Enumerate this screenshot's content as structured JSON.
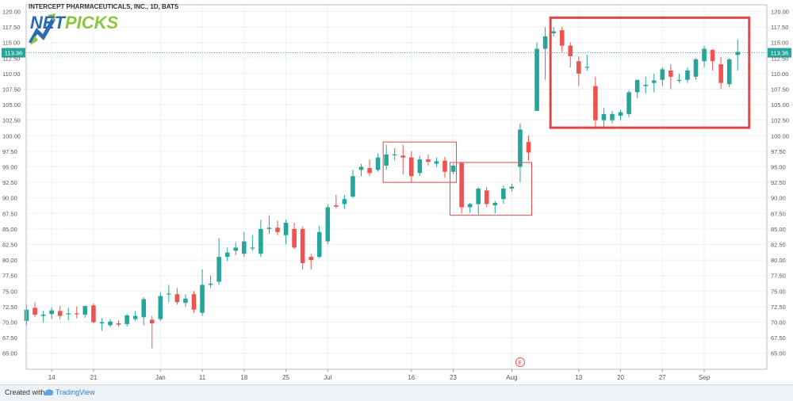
{
  "chart_data": {
    "type": "candlestick",
    "title": "INTERCEPT PHARMACEUTICALS, INC., 1D, BATS",
    "ylim": [
      63,
      121
    ],
    "y_ticks": [
      "65.00",
      "67.50",
      "70.00",
      "72.50",
      "75.00",
      "77.50",
      "80.00",
      "82.50",
      "85.00",
      "87.50",
      "90.00",
      "92.50",
      "95.00",
      "97.50",
      "100.00",
      "102.50",
      "105.00",
      "107.50",
      "110.00",
      "112.50",
      "115.00",
      "117.50",
      "120.00"
    ],
    "x_ticks": [
      {
        "label": "14",
        "bar": 3
      },
      {
        "label": "21",
        "bar": 8
      },
      {
        "label": "Jan",
        "bar": 16
      },
      {
        "label": "11",
        "bar": 21
      },
      {
        "label": "18",
        "bar": 26
      },
      {
        "label": "25",
        "bar": 31
      },
      {
        "label": "Jul",
        "bar": 36
      },
      {
        "label": "16",
        "bar": 46
      },
      {
        "label": "23",
        "bar": 51
      },
      {
        "label": "Aug",
        "bar": 58
      },
      {
        "label": "13",
        "bar": 66
      },
      {
        "label": "20",
        "bar": 71
      },
      {
        "label": "27",
        "bar": 76
      },
      {
        "label": "Sep",
        "bar": 81
      }
    ],
    "current_price": {
      "value": 113.36,
      "label": "113.36"
    },
    "earnings_marker": {
      "label": "E",
      "bar": 59
    },
    "colors": {
      "up": "#26a69a",
      "down": "#ef5350",
      "box": "#e04848",
      "price_line": "#26a69a"
    },
    "candles": [
      [
        70.2,
        72.8,
        69.5,
        72.0
      ],
      [
        72.3,
        73.2,
        70.8,
        71.2
      ],
      [
        71.0,
        71.8,
        70.0,
        71.2
      ],
      [
        71.3,
        72.4,
        70.5,
        71.9
      ],
      [
        71.8,
        72.6,
        70.4,
        71.0
      ],
      [
        71.4,
        72.3,
        70.3,
        71.4
      ],
      [
        71.4,
        72.5,
        70.6,
        71.3
      ],
      [
        71.2,
        72.4,
        70.7,
        72.6
      ],
      [
        72.7,
        73.0,
        69.8,
        70.0
      ],
      [
        69.8,
        70.6,
        68.6,
        70.0
      ],
      [
        69.5,
        70.5,
        69.2,
        70.1
      ],
      [
        69.8,
        70.3,
        69.3,
        69.6
      ],
      [
        69.7,
        71.3,
        69.3,
        71.1
      ],
      [
        70.5,
        71.8,
        70.2,
        71.0
      ],
      [
        70.8,
        74.0,
        69.5,
        73.7
      ],
      [
        70.4,
        71.0,
        65.8,
        69.8
      ],
      [
        70.5,
        74.8,
        70.2,
        74.2
      ],
      [
        74.5,
        76.0,
        73.2,
        74.6
      ],
      [
        74.5,
        75.5,
        72.8,
        73.2
      ],
      [
        73.1,
        74.5,
        72.5,
        73.8
      ],
      [
        74.5,
        75.0,
        71.5,
        72.0
      ],
      [
        71.5,
        78.5,
        71.0,
        76.0
      ],
      [
        76.0,
        77.5,
        75.5,
        76.2
      ],
      [
        76.5,
        83.5,
        76.0,
        80.5
      ],
      [
        80.5,
        82.0,
        79.8,
        81.2
      ],
      [
        81.5,
        82.8,
        80.8,
        82.0
      ],
      [
        81.0,
        84.5,
        80.5,
        83.0
      ],
      [
        82.0,
        84.0,
        81.5,
        82.0
      ],
      [
        81.0,
        86.5,
        80.5,
        85.0
      ],
      [
        85.0,
        87.2,
        84.2,
        85.2
      ],
      [
        85.2,
        86.3,
        84.0,
        84.5
      ],
      [
        84.0,
        86.5,
        82.5,
        86.0
      ],
      [
        85.0,
        86.0,
        81.8,
        82.0
      ],
      [
        85.0,
        85.4,
        78.5,
        79.5
      ],
      [
        80.5,
        81.0,
        78.5,
        80.0
      ],
      [
        80.5,
        85.5,
        80.3,
        84.5
      ],
      [
        83.0,
        89.0,
        82.5,
        88.5
      ],
      [
        88.8,
        90.5,
        88.3,
        88.6
      ],
      [
        89.0,
        90.5,
        88.2,
        89.8
      ],
      [
        90.2,
        94.5,
        90.0,
        93.5
      ],
      [
        94.5,
        95.5,
        93.5,
        95.0
      ],
      [
        94.8,
        96.2,
        93.5,
        94.0
      ],
      [
        94.5,
        97.2,
        94.2,
        96.5
      ],
      [
        95.2,
        98.5,
        94.5,
        97.0
      ],
      [
        97.0,
        98.0,
        96.0,
        97.0
      ],
      [
        96.8,
        98.5,
        93.8,
        96.5
      ],
      [
        96.5,
        97.5,
        92.5,
        93.5
      ],
      [
        94.0,
        96.8,
        93.5,
        96.2
      ],
      [
        96.2,
        97.0,
        95.2,
        95.8
      ],
      [
        95.5,
        96.5,
        95.0,
        95.9
      ],
      [
        96.0,
        96.6,
        93.2,
        94.2
      ],
      [
        94.2,
        95.5,
        93.8,
        95.2
      ],
      [
        95.6,
        95.8,
        87.5,
        88.5
      ],
      [
        88.5,
        89.2,
        87.6,
        89.0
      ],
      [
        89.0,
        91.7,
        87.3,
        91.5
      ],
      [
        91.2,
        91.8,
        88.5,
        89.0
      ],
      [
        88.8,
        89.5,
        87.5,
        89.2
      ],
      [
        89.8,
        92.0,
        89.0,
        91.5
      ],
      [
        91.5,
        92.3,
        91.0,
        91.8
      ],
      [
        95.0,
        102.0,
        92.5,
        101.0
      ],
      [
        99.0,
        100.0,
        96.0,
        97.3
      ],
      [
        104.0,
        115.0,
        104.0,
        114.0
      ],
      [
        114.0,
        117.5,
        109.0,
        116.0
      ],
      [
        116.5,
        117.5,
        116.0,
        116.8
      ],
      [
        117.0,
        117.5,
        113.5,
        114.5
      ],
      [
        114.5,
        115.0,
        111.0,
        112.8
      ],
      [
        112.0,
        112.8,
        108.0,
        110.0
      ],
      [
        111.0,
        113.0,
        110.5,
        111.1
      ],
      [
        108.0,
        109.5,
        101.5,
        102.5
      ],
      [
        102.5,
        104.5,
        101.5,
        103.5
      ],
      [
        102.5,
        104.0,
        102.0,
        103.5
      ],
      [
        103.2,
        104.2,
        102.5,
        103.8
      ],
      [
        103.5,
        107.3,
        103.0,
        107.0
      ],
      [
        107.0,
        109.0,
        106.0,
        109.0
      ],
      [
        108.0,
        109.5,
        106.8,
        108.2
      ],
      [
        108.5,
        110.0,
        107.0,
        108.9
      ],
      [
        109.0,
        111.0,
        108.0,
        110.7
      ],
      [
        110.5,
        111.5,
        107.5,
        109.5
      ],
      [
        109.0,
        110.0,
        108.5,
        109.0
      ],
      [
        109.0,
        111.0,
        108.5,
        110.5
      ],
      [
        109.5,
        112.5,
        109.0,
        112.3
      ],
      [
        112.0,
        114.5,
        111.0,
        114.0
      ],
      [
        113.8,
        114.0,
        110.5,
        112.0
      ],
      [
        111.5,
        112.7,
        107.5,
        108.5
      ],
      [
        108.3,
        112.5,
        107.8,
        112.3
      ],
      [
        113.0,
        115.5,
        110.5,
        113.5
      ]
    ],
    "annotation_boxes": [
      {
        "bars": [
          43,
          51
        ],
        "price": [
          92.5,
          99.0
        ],
        "thick": false
      },
      {
        "bars": [
          51,
          60
        ],
        "price": [
          87.2,
          95.7
        ],
        "thick": false
      },
      {
        "bars": [
          63,
          86
        ],
        "price": [
          101.3,
          119.0
        ],
        "thick": true
      }
    ]
  },
  "logo": {
    "part1": "NET",
    "part2": "PICKS"
  },
  "footer": {
    "created_with": "Created with",
    "brand": "TradingView"
  }
}
